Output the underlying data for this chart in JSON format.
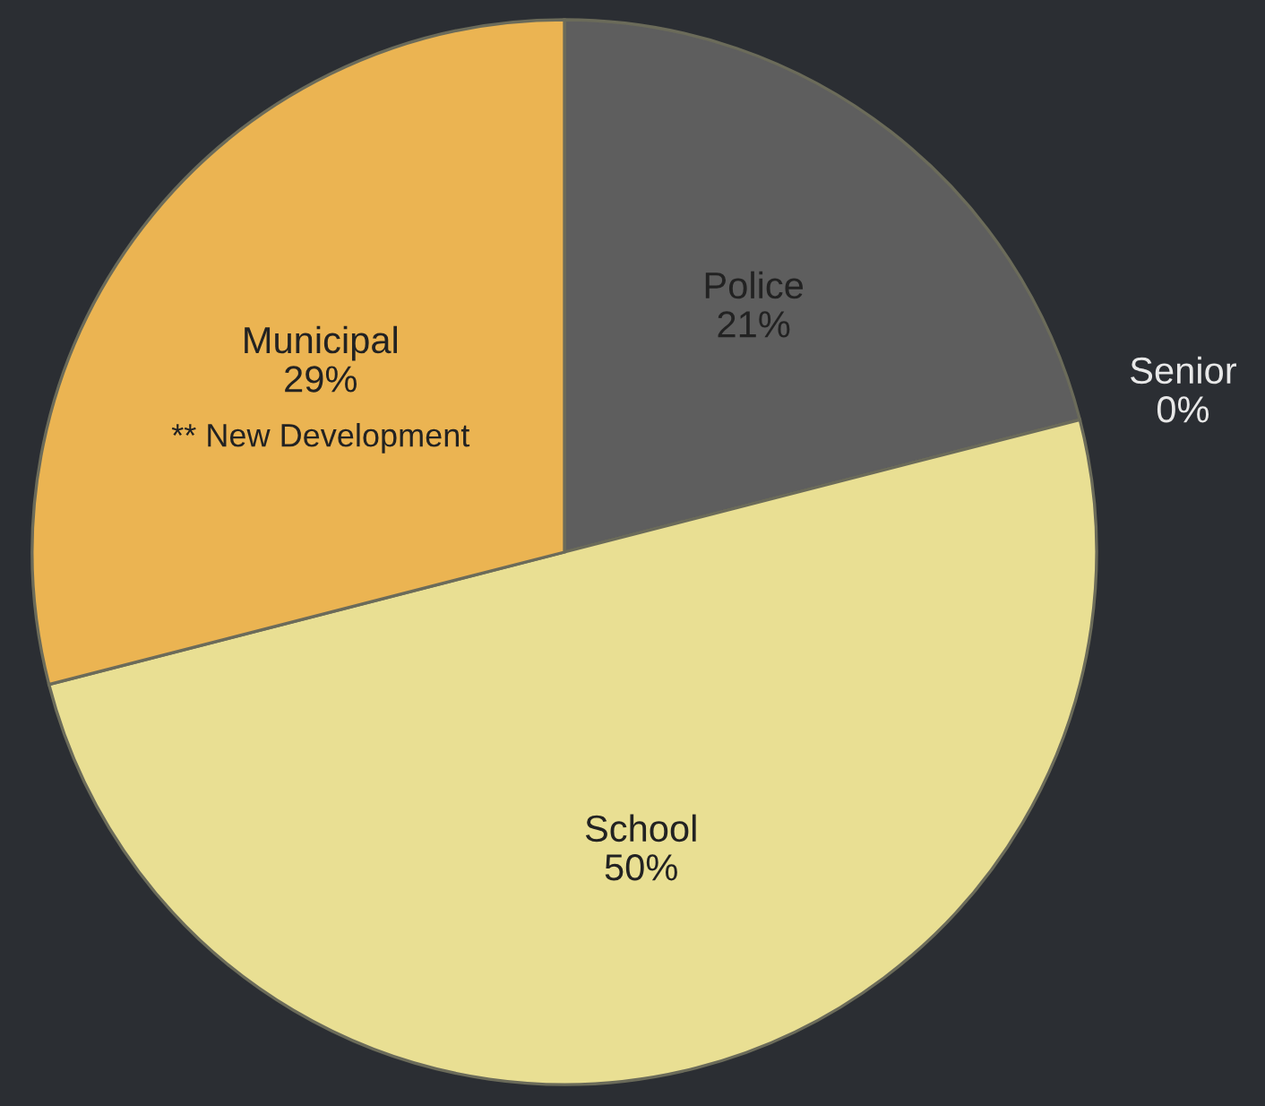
{
  "chart_data": {
    "type": "pie",
    "categories": [
      "Police",
      "Senior",
      "School",
      "Municipal"
    ],
    "values": [
      21,
      0,
      50,
      29
    ],
    "value_labels": [
      "21%",
      "0%",
      "50%",
      "29%"
    ],
    "colors": [
      "#5e5e5e",
      "#8a8a8a",
      "#e9df93",
      "#ebb452"
    ],
    "annotations": [
      {
        "text": "** New Development",
        "x": "Municipal"
      }
    ]
  }
}
